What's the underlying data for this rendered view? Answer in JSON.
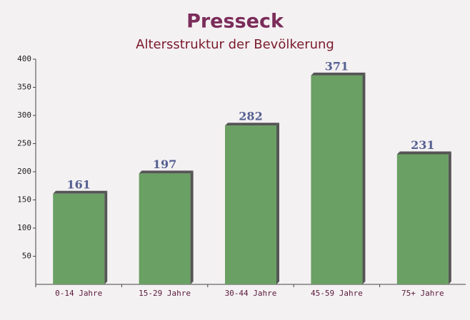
{
  "chart_data": {
    "type": "bar",
    "title": "Presseck",
    "subtitle": "Altersstruktur der Bevölkerung",
    "categories": [
      "0-14 Jahre",
      "15-29 Jahre",
      "30-44 Jahre",
      "45-59 Jahre",
      "75+ Jahre"
    ],
    "values": [
      161,
      197,
      282,
      371,
      231
    ],
    "color": "#6aa063",
    "ylim": [
      0,
      400
    ],
    "yticks": [
      50,
      100,
      150,
      200,
      250,
      300,
      350,
      400
    ],
    "grid": false
  }
}
